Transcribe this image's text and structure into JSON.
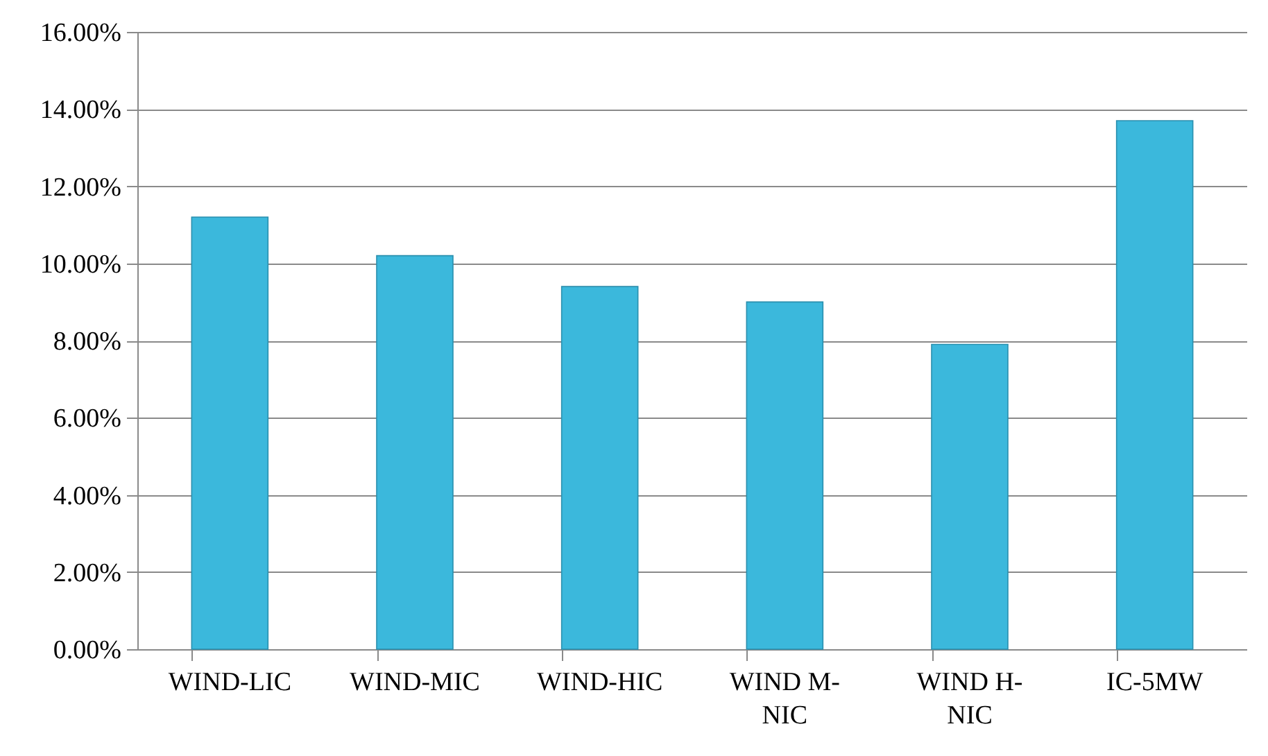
{
  "chart_data": {
    "type": "bar",
    "categories": [
      "WIND-LIC",
      "WIND-MIC",
      "WIND-HIC",
      "WIND M-NIC",
      "WIND H-NIC",
      "IC-5MW"
    ],
    "values": [
      11.2,
      10.2,
      9.4,
      9.0,
      7.9,
      13.7
    ],
    "color": "#3bb8dc",
    "ylim": [
      0,
      16
    ],
    "yticks": [
      {
        "value": 0,
        "label": "0.00%"
      },
      {
        "value": 2,
        "label": "2.00%"
      },
      {
        "value": 4,
        "label": "4.00%"
      },
      {
        "value": 6,
        "label": "6.00%"
      },
      {
        "value": 8,
        "label": "8.00%"
      },
      {
        "value": 10,
        "label": "10.00%"
      },
      {
        "value": 12,
        "label": "12.00%"
      },
      {
        "value": 14,
        "label": "14.00%"
      },
      {
        "value": 16,
        "label": "16.00%"
      }
    ],
    "grid": "y"
  }
}
